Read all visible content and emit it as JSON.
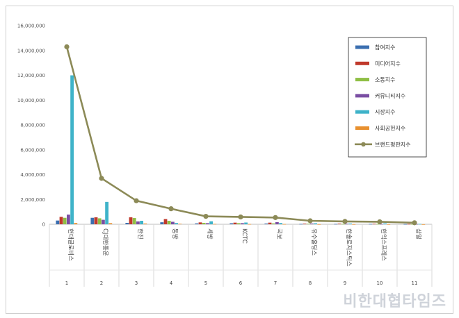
{
  "chart_data": {
    "type": "bar",
    "title": "",
    "xlabel": "",
    "ylabel": "",
    "ylim": [
      0,
      16000000
    ],
    "yticks": [
      0,
      2000000,
      4000000,
      6000000,
      8000000,
      10000000,
      12000000,
      14000000,
      16000000
    ],
    "ytick_labels": [
      "0",
      "2,000,000",
      "4,000,000",
      "6,000,000",
      "8,000,000",
      "10,000,000",
      "12,000,000",
      "14,000,000",
      "16,000,000"
    ],
    "categories": [
      "현대글로비스",
      "CJ대한통운",
      "한진",
      "동방",
      "세방",
      "KCTC",
      "국보",
      "유수홀딩스",
      "한솔로지스틱스",
      "한익스프레스",
      "삼일"
    ],
    "ranks": [
      "1",
      "2",
      "3",
      "4",
      "5",
      "6",
      "7",
      "8",
      "9",
      "10",
      "11"
    ],
    "grid": false,
    "legend_position": "right",
    "series": [
      {
        "name": "참여지수",
        "color": "#3b6fb0",
        "type": "bar",
        "values": [
          300000,
          520000,
          110000,
          160000,
          70000,
          80000,
          60000,
          30000,
          30000,
          30000,
          20000
        ]
      },
      {
        "name": "미디어지수",
        "color": "#c0392b",
        "type": "bar",
        "values": [
          600000,
          560000,
          560000,
          420000,
          150000,
          130000,
          130000,
          50000,
          50000,
          40000,
          30000
        ]
      },
      {
        "name": "소통지수",
        "color": "#8fbf45",
        "type": "bar",
        "values": [
          520000,
          480000,
          500000,
          280000,
          110000,
          90000,
          70000,
          40000,
          30000,
          30000,
          20000
        ]
      },
      {
        "name": "커뮤니티지수",
        "color": "#7a4ea3",
        "type": "bar",
        "values": [
          780000,
          360000,
          230000,
          200000,
          90000,
          90000,
          170000,
          60000,
          40000,
          30000,
          20000
        ]
      },
      {
        "name": "시장지수",
        "color": "#3fb3c9",
        "type": "bar",
        "values": [
          12000000,
          1800000,
          280000,
          100000,
          240000,
          140000,
          100000,
          80000,
          60000,
          70000,
          30000
        ]
      },
      {
        "name": "사회공헌지수",
        "color": "#e8902f",
        "type": "bar",
        "values": [
          100000,
          90000,
          60000,
          40000,
          30000,
          20000,
          20000,
          10000,
          10000,
          10000,
          5000
        ]
      },
      {
        "name": "브랜드평판지수",
        "color": "#8c8a57",
        "type": "line",
        "values": [
          14300000,
          3700000,
          1900000,
          1250000,
          640000,
          590000,
          540000,
          280000,
          230000,
          200000,
          120000
        ]
      }
    ]
  },
  "watermark": "비한대협타임즈"
}
